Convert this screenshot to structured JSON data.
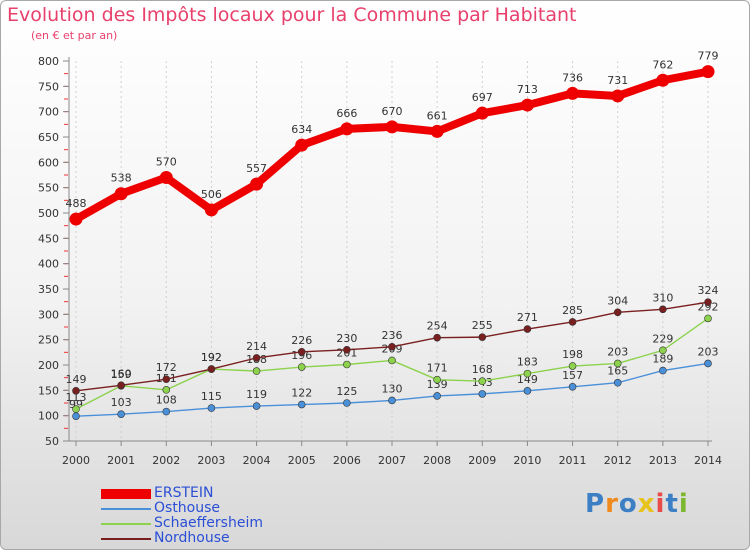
{
  "title": "Evolution des Impôts locaux pour la Commune par Habitant",
  "subtitle": "(en € et par an)",
  "logo": {
    "text": "Proxiti",
    "colors": [
      "#3d7fc4",
      "#f18a1c",
      "#3d7fc4",
      "#e8c31b",
      "#e94b4b",
      "#3d7fc4",
      "#7cb82f"
    ]
  },
  "chart_data": {
    "type": "line",
    "title": "Evolution des Impôts locaux pour la Commune par Habitant",
    "subtitle": "(en € et par an)",
    "xlabel": "",
    "ylabel": "",
    "ylim": [
      50,
      800
    ],
    "yticks": [
      50,
      100,
      150,
      200,
      250,
      300,
      350,
      400,
      450,
      500,
      550,
      600,
      650,
      700,
      750,
      800
    ],
    "categories": [
      "2000",
      "2001",
      "2002",
      "2003",
      "2004",
      "2005",
      "2006",
      "2007",
      "2008",
      "2009",
      "2010",
      "2011",
      "2012",
      "2013",
      "2014"
    ],
    "grid": "vertical dashed",
    "legend_position": "bottom-left",
    "series": [
      {
        "name": "Osthouse",
        "color": "#4a90d9",
        "values": [
          99,
          103,
          108,
          115,
          119,
          122,
          125,
          130,
          139,
          143,
          149,
          157,
          165,
          189,
          203
        ],
        "labels": [
          "99",
          "103",
          "108",
          "115",
          "119",
          "122",
          "125",
          "130",
          "139",
          "143",
          "149",
          "157",
          "165",
          "189",
          "203"
        ]
      },
      {
        "name": "Schaeffersheim",
        "color": "#8cd24d",
        "values": [
          113,
          159,
          151,
          192,
          188,
          196,
          201,
          209,
          171,
          168,
          183,
          198,
          203,
          229,
          292
        ],
        "labels": [
          "113",
          "159",
          "151",
          "192",
          "188",
          "196",
          "201",
          "209",
          "171",
          "168",
          "183",
          "198",
          "203",
          "229",
          "292"
        ]
      },
      {
        "name": "Nordhouse",
        "color": "#7a1f1f",
        "values": [
          149,
          160,
          172,
          192,
          214,
          226,
          230,
          236,
          254,
          255,
          271,
          285,
          304,
          310,
          324
        ],
        "labels": [
          "149",
          "160",
          "172",
          "192",
          "214",
          "226",
          "230",
          "236",
          "254",
          "255",
          "271",
          "285",
          "304",
          "310",
          "324"
        ]
      },
      {
        "name": "ERSTEIN",
        "color": "#ee0000",
        "values": [
          488,
          538,
          570,
          506,
          557,
          634,
          666,
          670,
          661,
          697,
          713,
          736,
          731,
          762,
          779
        ],
        "labels": [
          "488",
          "538",
          "570",
          "506",
          "557",
          "634",
          "666",
          "670",
          "661",
          "697",
          "713",
          "736",
          "731",
          "762",
          "779"
        ]
      }
    ],
    "legend": [
      "ERSTEIN",
      "Osthouse",
      "Schaeffersheim",
      "Nordhouse"
    ]
  }
}
